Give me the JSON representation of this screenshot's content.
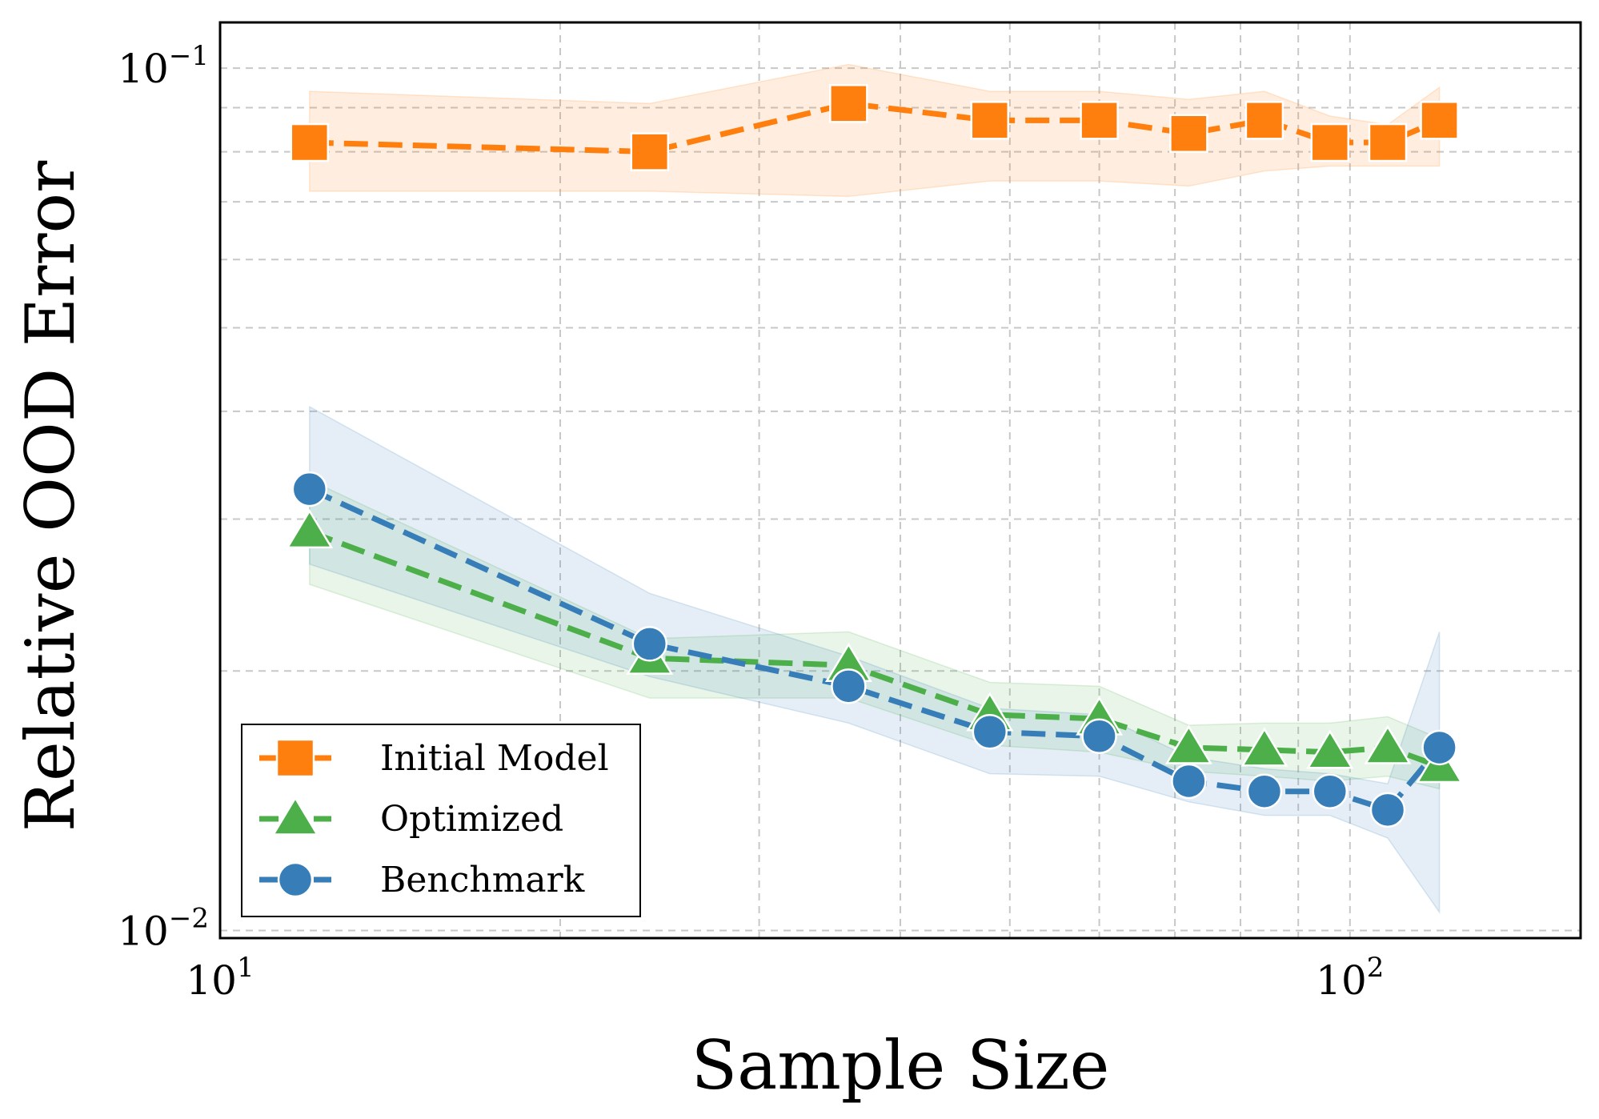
{
  "chart_data": {
    "type": "line",
    "xscale": "log",
    "yscale": "log",
    "xlabel": "Sample Size",
    "ylabel": "Relative OOD Error",
    "xlim": [
      10,
      160
    ],
    "ylim": [
      0.0098,
      0.113
    ],
    "x_ticks": [
      {
        "value": 10,
        "base": "10",
        "exp": "1"
      },
      {
        "value": 100,
        "base": "10",
        "exp": "2"
      }
    ],
    "y_ticks": [
      {
        "value": 0.01,
        "base": "10",
        "exp": "−2"
      },
      {
        "value": 0.1,
        "base": "10",
        "exp": "−1"
      }
    ],
    "x_minor": [
      20,
      30,
      40,
      50,
      60,
      70,
      80,
      90
    ],
    "y_minor": [
      0.02,
      0.03,
      0.04,
      0.05,
      0.06,
      0.07,
      0.08,
      0.09
    ],
    "grid": true,
    "legend": {
      "position": "bottom-left"
    },
    "x": [
      12,
      24,
      36,
      48,
      60,
      72,
      84,
      96,
      108,
      120
    ],
    "series": [
      {
        "name": "Initial Model",
        "marker": "square",
        "color": "#ff7f0e",
        "values": [
          0.082,
          0.08,
          0.091,
          0.087,
          0.087,
          0.084,
          0.087,
          0.082,
          0.082,
          0.087
        ],
        "band_low": [
          0.072,
          0.072,
          0.071,
          0.074,
          0.074,
          0.073,
          0.076,
          0.077,
          0.077,
          0.077
        ],
        "band_high": [
          0.094,
          0.091,
          0.101,
          0.094,
          0.094,
          0.092,
          0.094,
          0.088,
          0.086,
          0.095
        ]
      },
      {
        "name": "Optimized",
        "marker": "triangle",
        "color": "#4daf4a",
        "values": [
          0.029,
          0.0207,
          0.0203,
          0.0178,
          0.0176,
          0.0163,
          0.0162,
          0.0161,
          0.0163,
          0.0155
        ],
        "band_low": [
          0.0252,
          0.0186,
          0.0186,
          0.0164,
          0.0161,
          0.0153,
          0.0151,
          0.0149,
          0.0151,
          0.0146
        ],
        "band_high": [
          0.0333,
          0.0218,
          0.0222,
          0.0194,
          0.0192,
          0.0173,
          0.0174,
          0.0174,
          0.0177,
          0.0167
        ]
      },
      {
        "name": "Benchmark",
        "marker": "circle",
        "color": "#377eb8",
        "values": [
          0.0325,
          0.0215,
          0.0192,
          0.017,
          0.0168,
          0.0149,
          0.0145,
          0.0145,
          0.0138,
          0.0163
        ],
        "band_low": [
          0.0266,
          0.0197,
          0.0174,
          0.0152,
          0.0151,
          0.0141,
          0.0136,
          0.0136,
          0.0128,
          0.0105
        ],
        "band_high": [
          0.0405,
          0.0246,
          0.0208,
          0.0181,
          0.0178,
          0.0159,
          0.0154,
          0.0152,
          0.0148,
          0.0222
        ]
      }
    ]
  }
}
